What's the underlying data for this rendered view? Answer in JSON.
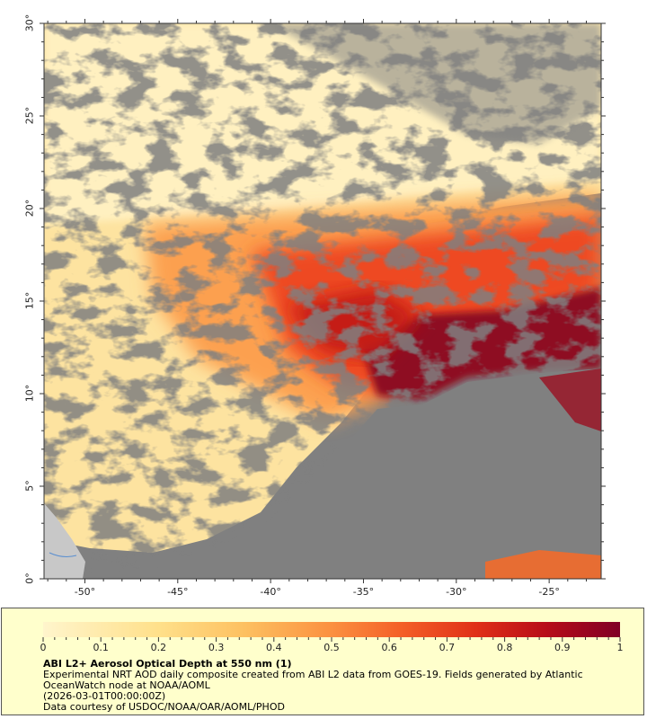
{
  "map": {
    "lat_ticks": [
      "0°",
      "5°",
      "10°",
      "15°",
      "20°",
      "25°",
      "30°"
    ],
    "lon_ticks": [
      "-50°",
      "-45°",
      "-40°",
      "-35°",
      "-30°",
      "-25°"
    ],
    "lat_range": [
      0,
      30
    ],
    "lon_range": [
      -52.2,
      -22.2
    ],
    "no_data_color": "#808080",
    "land_color": "#c8c8c8"
  },
  "legend": {
    "ticks": [
      "0",
      "0.1",
      "0.2",
      "0.3",
      "0.4",
      "0.5",
      "0.6",
      "0.7",
      "0.8",
      "0.9",
      "1"
    ],
    "range": [
      0,
      1
    ],
    "colors": [
      "#fff5cc",
      "#ffe08a",
      "#fdc060",
      "#fb9040",
      "#f46028",
      "#e03018",
      "#b80d18",
      "#800026"
    ],
    "title": "ABI L2+ Aerosol Optical Depth at 550 nm (1)",
    "line1": "Experimental NRT AOD daily composite created from ABI L2 data from GOES-19. Fields generated by Atlantic",
    "line2": "OceanWatch node at NOAA/AOML",
    "line3": "(2026-03-01T00:00:00Z)",
    "line4": "Data courtesy of USDOC/NOAA/OAR/AOML/PHOD"
  }
}
